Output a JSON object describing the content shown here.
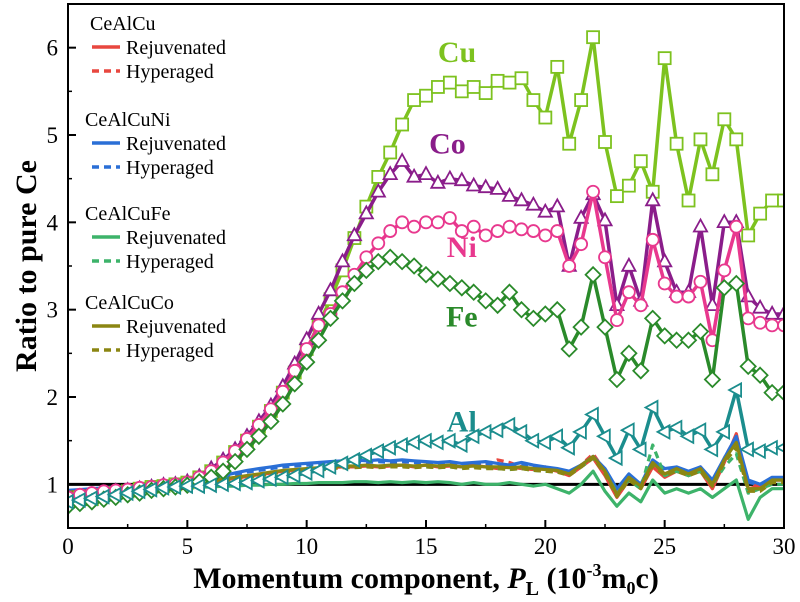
{
  "chart_data": {
    "type": "line",
    "title": "",
    "xlabel": "Momentum component, P_L (10^-3 m0c)",
    "xlabel_parts": {
      "prefix": "Momentum component, ",
      "symbol": "P",
      "sub": "L",
      "units_open": " (10",
      "exp": "-3",
      "units_mid": "m",
      "units_sub": "0",
      "units_close": "c)"
    },
    "ylabel": "Ratio to pure Ce",
    "xlim": [
      0,
      30
    ],
    "ylim": [
      0.5,
      6.5
    ],
    "xticks": [
      0,
      5,
      10,
      15,
      20,
      25,
      30
    ],
    "yticks": [
      1,
      2,
      3,
      4,
      5,
      6
    ],
    "reference_line": 1,
    "legend": [
      {
        "group": "CeAlCu",
        "color": "#e8473f",
        "entries": [
          "Rejuvenated",
          "Hyperaged"
        ]
      },
      {
        "group": "CeAlCuNi",
        "color": "#2a6fd6",
        "entries": [
          "Rejuvenated",
          "Hyperaged"
        ]
      },
      {
        "group": "CeAlCuFe",
        "color": "#3db36a",
        "entries": [
          "Rejuvenated",
          "Hyperaged"
        ]
      },
      {
        "group": "CeAlCuCo",
        "color": "#8b8612",
        "entries": [
          "Rejuvenated",
          "Hyperaged"
        ]
      }
    ],
    "x": [
      0,
      0.5,
      1,
      1.5,
      2,
      2.5,
      3,
      3.5,
      4,
      4.5,
      5,
      5.5,
      6,
      6.5,
      7,
      7.5,
      8,
      8.5,
      9,
      9.5,
      10,
      10.5,
      11,
      11.5,
      12,
      12.5,
      13,
      13.5,
      14,
      14.5,
      15,
      15.5,
      16,
      16.5,
      17,
      17.5,
      18,
      18.5,
      19,
      19.5,
      20,
      20.5,
      21,
      21.5,
      22,
      22.5,
      23,
      23.5,
      24,
      24.5,
      25,
      25.5,
      26,
      26.5,
      27,
      27.5,
      28,
      28.5,
      29,
      29.5,
      30
    ],
    "marker_series": [
      {
        "name": "Cu",
        "color": "#7dc21f",
        "marker": "square",
        "label_x": 16.3,
        "label_y": 5.95,
        "values": [
          0.8,
          0.85,
          0.83,
          0.88,
          0.9,
          0.92,
          0.95,
          0.97,
          0.98,
          1.0,
          1.02,
          1.08,
          1.15,
          1.25,
          1.37,
          1.5,
          1.66,
          1.84,
          2.05,
          2.28,
          2.55,
          2.83,
          3.12,
          3.45,
          3.82,
          4.18,
          4.52,
          4.8,
          5.12,
          5.4,
          5.45,
          5.55,
          5.6,
          5.5,
          5.55,
          5.48,
          5.62,
          5.6,
          5.65,
          5.4,
          5.2,
          5.78,
          4.9,
          5.4,
          6.12,
          4.92,
          4.3,
          4.42,
          4.7,
          4.35,
          5.88,
          4.9,
          4.25,
          4.95,
          4.55,
          5.18,
          4.95,
          3.85,
          4.1,
          4.25,
          4.25
        ]
      },
      {
        "name": "Co",
        "color": "#8a1d8a",
        "marker": "triangle-up",
        "label_x": 15.9,
        "label_y": 4.9,
        "values": [
          0.83,
          0.86,
          0.88,
          0.9,
          0.92,
          0.93,
          0.95,
          0.97,
          0.99,
          1.0,
          1.03,
          1.09,
          1.18,
          1.28,
          1.4,
          1.55,
          1.72,
          1.9,
          2.12,
          2.38,
          2.66,
          2.95,
          3.22,
          3.55,
          3.85,
          4.1,
          4.35,
          4.55,
          4.7,
          4.52,
          4.55,
          4.45,
          4.5,
          4.48,
          4.42,
          4.4,
          4.38,
          4.3,
          4.25,
          4.2,
          4.12,
          4.18,
          3.5,
          4.05,
          4.32,
          4.02,
          3.05,
          3.5,
          3.1,
          4.25,
          3.55,
          3.2,
          3.2,
          3.95,
          3.05,
          4.0,
          4.0,
          3.15,
          3.02,
          2.95,
          2.95
        ]
      },
      {
        "name": "Ni",
        "color": "#e8388e",
        "marker": "circle",
        "label_x": 16.5,
        "label_y": 3.72,
        "values": [
          0.85,
          0.88,
          0.9,
          0.92,
          0.93,
          0.94,
          0.96,
          0.97,
          0.99,
          1.0,
          1.02,
          1.08,
          1.15,
          1.25,
          1.38,
          1.52,
          1.68,
          1.86,
          2.06,
          2.3,
          2.55,
          2.82,
          2.95,
          3.2,
          3.4,
          3.6,
          3.76,
          3.9,
          4.0,
          3.95,
          4.0,
          4.0,
          4.05,
          3.9,
          3.95,
          3.85,
          3.9,
          3.95,
          3.92,
          3.9,
          3.85,
          3.9,
          3.5,
          3.75,
          4.35,
          3.6,
          2.88,
          3.2,
          3.05,
          3.8,
          3.3,
          3.15,
          3.15,
          3.32,
          2.65,
          3.45,
          3.95,
          2.9,
          2.85,
          2.82,
          2.82
        ]
      },
      {
        "name": "Fe",
        "color": "#2a8a2a",
        "marker": "diamond",
        "label_x": 16.5,
        "label_y": 2.92,
        "values": [
          0.75,
          0.78,
          0.8,
          0.83,
          0.85,
          0.88,
          0.9,
          0.93,
          0.95,
          0.97,
          0.99,
          1.03,
          1.08,
          1.15,
          1.26,
          1.4,
          1.55,
          1.72,
          1.92,
          2.15,
          2.4,
          2.65,
          2.9,
          3.1,
          3.3,
          3.45,
          3.55,
          3.6,
          3.55,
          3.5,
          3.4,
          3.35,
          3.3,
          3.25,
          3.2,
          3.1,
          3.05,
          3.2,
          3.0,
          2.9,
          2.95,
          3.0,
          2.55,
          2.8,
          3.4,
          2.8,
          2.2,
          2.5,
          2.3,
          2.9,
          2.7,
          2.65,
          2.65,
          2.75,
          2.2,
          3.25,
          3.3,
          2.35,
          2.25,
          2.05,
          2.05
        ]
      },
      {
        "name": "Al",
        "color": "#1b8d8d",
        "marker": "triangle-left",
        "label_x": 16.5,
        "label_y": 1.72,
        "values": [
          0.8,
          0.82,
          0.84,
          0.86,
          0.88,
          0.9,
          0.92,
          0.94,
          0.96,
          0.97,
          0.98,
          0.98,
          0.99,
          1.0,
          1.01,
          1.02,
          1.04,
          1.06,
          1.08,
          1.1,
          1.13,
          1.16,
          1.2,
          1.24,
          1.28,
          1.33,
          1.38,
          1.42,
          1.45,
          1.48,
          1.5,
          1.48,
          1.5,
          1.45,
          1.55,
          1.6,
          1.62,
          1.68,
          1.6,
          1.5,
          1.48,
          1.55,
          1.42,
          1.6,
          1.8,
          1.55,
          1.3,
          1.62,
          1.4,
          1.88,
          1.6,
          1.65,
          1.55,
          1.62,
          1.4,
          1.6,
          2.08,
          1.4,
          1.38,
          1.42,
          1.42
        ]
      }
    ],
    "line_series": [
      {
        "name": "CeAlCu Rejuvenated",
        "color": "#e8473f",
        "dash": "solid",
        "values": [
          0.92,
          0.93,
          0.94,
          0.95,
          0.96,
          0.97,
          0.98,
          0.99,
          1.0,
          1.0,
          1.01,
          1.02,
          1.03,
          1.05,
          1.07,
          1.09,
          1.11,
          1.13,
          1.15,
          1.16,
          1.17,
          1.18,
          1.19,
          1.2,
          1.2,
          1.21,
          1.2,
          1.21,
          1.22,
          1.2,
          1.22,
          1.2,
          1.21,
          1.2,
          1.22,
          1.2,
          1.18,
          1.2,
          1.18,
          1.17,
          1.18,
          1.15,
          1.1,
          1.2,
          1.3,
          1.1,
          0.85,
          1.05,
          0.95,
          1.2,
          1.08,
          1.15,
          1.1,
          1.15,
          0.95,
          1.25,
          1.58,
          0.95,
          0.98,
          1.05,
          1.05
        ]
      },
      {
        "name": "CeAlCu Hyperaged",
        "color": "#e8473f",
        "dash": "dashed",
        "values": [
          0.9,
          0.91,
          0.92,
          0.93,
          0.94,
          0.95,
          0.96,
          0.98,
          0.99,
          1.0,
          1.0,
          1.01,
          1.02,
          1.04,
          1.06,
          1.08,
          1.1,
          1.12,
          1.14,
          1.15,
          1.16,
          1.17,
          1.18,
          1.19,
          1.2,
          1.2,
          1.21,
          1.2,
          1.22,
          1.21,
          1.22,
          1.2,
          1.22,
          1.21,
          1.23,
          1.22,
          1.28,
          1.25,
          1.2,
          1.18,
          1.2,
          1.15,
          1.12,
          1.22,
          1.35,
          1.15,
          0.9,
          1.08,
          1.0,
          1.25,
          1.12,
          1.18,
          1.12,
          1.2,
          1.0,
          1.3,
          1.55,
          1.0,
          1.0,
          1.05,
          1.05
        ]
      },
      {
        "name": "CeAlCuNi Rejuvenated",
        "color": "#2a6fd6",
        "dash": "solid",
        "values": [
          0.93,
          0.94,
          0.95,
          0.96,
          0.97,
          0.98,
          0.99,
          1.0,
          1.01,
          1.02,
          1.03,
          1.05,
          1.07,
          1.1,
          1.13,
          1.16,
          1.18,
          1.2,
          1.22,
          1.23,
          1.24,
          1.25,
          1.26,
          1.27,
          1.28,
          1.27,
          1.28,
          1.27,
          1.28,
          1.27,
          1.26,
          1.25,
          1.26,
          1.24,
          1.25,
          1.26,
          1.24,
          1.22,
          1.25,
          1.22,
          1.2,
          1.18,
          1.15,
          1.22,
          1.32,
          1.18,
          0.95,
          1.12,
          1.0,
          1.28,
          1.18,
          1.2,
          1.15,
          1.2,
          1.05,
          1.3,
          1.55,
          1.05,
          1.0,
          1.08,
          1.08
        ]
      },
      {
        "name": "CeAlCuNi Hyperaged",
        "color": "#2a6fd6",
        "dash": "dashed",
        "values": [
          0.92,
          0.93,
          0.94,
          0.95,
          0.96,
          0.97,
          0.98,
          0.99,
          1.0,
          1.01,
          1.02,
          1.04,
          1.06,
          1.08,
          1.11,
          1.14,
          1.16,
          1.18,
          1.2,
          1.21,
          1.22,
          1.23,
          1.24,
          1.25,
          1.26,
          1.25,
          1.26,
          1.25,
          1.26,
          1.25,
          1.24,
          1.23,
          1.24,
          1.22,
          1.23,
          1.24,
          1.22,
          1.2,
          1.23,
          1.2,
          1.18,
          1.16,
          1.13,
          1.2,
          1.3,
          1.16,
          0.95,
          1.1,
          1.0,
          1.25,
          1.15,
          1.18,
          1.12,
          1.18,
          1.02,
          1.28,
          1.5,
          1.02,
          1.0,
          1.05,
          1.05
        ]
      },
      {
        "name": "CeAlCuFe Rejuvenated",
        "color": "#3db36a",
        "dash": "solid",
        "values": [
          0.88,
          0.89,
          0.9,
          0.91,
          0.92,
          0.93,
          0.94,
          0.95,
          0.96,
          0.96,
          0.97,
          0.97,
          0.97,
          0.98,
          0.98,
          0.99,
          0.99,
          1.0,
          1.0,
          1.01,
          1.01,
          1.02,
          1.02,
          1.02,
          1.03,
          1.03,
          1.02,
          1.03,
          1.02,
          1.03,
          1.02,
          1.03,
          1.02,
          1.0,
          1.02,
          1.0,
          1.0,
          1.02,
          1.0,
          0.98,
          1.0,
          0.95,
          0.9,
          1.0,
          1.15,
          0.92,
          0.75,
          0.9,
          0.8,
          1.05,
          0.9,
          0.95,
          0.9,
          0.95,
          0.85,
          0.95,
          1.05,
          0.6,
          0.85,
          0.95,
          0.95
        ]
      },
      {
        "name": "CeAlCuFe Hyperaged",
        "color": "#3db36a",
        "dash": "dashed",
        "values": [
          0.87,
          0.88,
          0.89,
          0.9,
          0.91,
          0.92,
          0.93,
          0.94,
          0.95,
          0.96,
          0.97,
          0.98,
          0.99,
          1.0,
          1.02,
          1.04,
          1.06,
          1.08,
          1.1,
          1.12,
          1.14,
          1.16,
          1.18,
          1.2,
          1.2,
          1.21,
          1.2,
          1.2,
          1.21,
          1.2,
          1.2,
          1.19,
          1.2,
          1.18,
          1.2,
          1.19,
          1.18,
          1.17,
          1.18,
          1.16,
          1.15,
          1.14,
          1.12,
          1.2,
          1.3,
          1.15,
          0.9,
          1.05,
          0.95,
          1.45,
          1.1,
          1.15,
          1.1,
          1.15,
          1.0,
          1.2,
          1.35,
          0.9,
          0.95,
          1.0,
          1.0
        ]
      },
      {
        "name": "CeAlCuCo Rejuvenated",
        "color": "#8b8612",
        "dash": "solid",
        "values": [
          0.91,
          0.92,
          0.93,
          0.94,
          0.95,
          0.96,
          0.97,
          0.98,
          0.99,
          1.0,
          1.01,
          1.02,
          1.04,
          1.06,
          1.08,
          1.1,
          1.12,
          1.14,
          1.16,
          1.17,
          1.18,
          1.19,
          1.2,
          1.21,
          1.21,
          1.22,
          1.21,
          1.22,
          1.22,
          1.21,
          1.22,
          1.21,
          1.22,
          1.2,
          1.21,
          1.2,
          1.2,
          1.19,
          1.2,
          1.18,
          1.17,
          1.16,
          1.12,
          1.22,
          1.32,
          1.15,
          0.88,
          1.08,
          0.98,
          1.25,
          1.12,
          1.18,
          1.12,
          1.18,
          1.0,
          1.28,
          1.48,
          0.95,
          0.95,
          1.05,
          1.05
        ]
      },
      {
        "name": "CeAlCuCo Hyperaged",
        "color": "#8b8612",
        "dash": "dashed",
        "values": [
          0.89,
          0.9,
          0.91,
          0.92,
          0.93,
          0.94,
          0.95,
          0.96,
          0.97,
          0.98,
          0.99,
          1.0,
          1.02,
          1.04,
          1.06,
          1.08,
          1.1,
          1.12,
          1.14,
          1.15,
          1.16,
          1.17,
          1.18,
          1.19,
          1.19,
          1.2,
          1.19,
          1.2,
          1.2,
          1.19,
          1.2,
          1.19,
          1.2,
          1.18,
          1.19,
          1.18,
          1.18,
          1.17,
          1.18,
          1.16,
          1.15,
          1.14,
          1.1,
          1.2,
          1.3,
          1.12,
          0.86,
          1.05,
          0.95,
          1.22,
          1.1,
          1.15,
          1.1,
          1.15,
          0.98,
          1.25,
          1.42,
          0.92,
          0.92,
          1.02,
          1.02
        ]
      }
    ]
  }
}
